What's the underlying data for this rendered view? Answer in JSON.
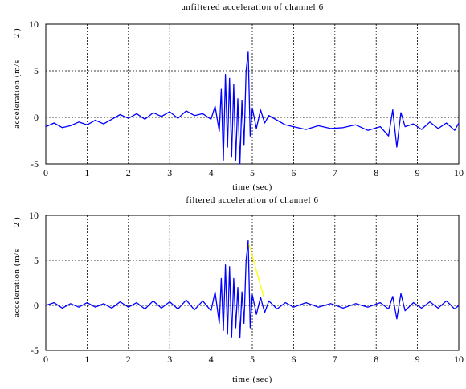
{
  "chart_data": [
    {
      "type": "line",
      "title": "unfiltered acceleration of channel 6",
      "xlabel": "time (sec)",
      "ylabel": "acceleration (m/s",
      "ylabel_exp": "2",
      "ylabel_close": ")",
      "xlim": [
        0,
        10
      ],
      "ylim": [
        -5,
        10
      ],
      "xticks": [
        0,
        1,
        2,
        3,
        4,
        5,
        6,
        7,
        8,
        9,
        10
      ],
      "yticks": [
        -5,
        0,
        5,
        10
      ],
      "grid": true,
      "series": [
        {
          "color": "#0000ff",
          "x": [
            0,
            0.2,
            0.4,
            0.6,
            0.8,
            1.0,
            1.2,
            1.4,
            1.6,
            1.8,
            2.0,
            2.2,
            2.4,
            2.6,
            2.8,
            3.0,
            3.2,
            3.4,
            3.6,
            3.8,
            4.0,
            4.1,
            4.2,
            4.25,
            4.3,
            4.35,
            4.4,
            4.45,
            4.5,
            4.55,
            4.6,
            4.65,
            4.7,
            4.75,
            4.8,
            4.85,
            4.9,
            4.95,
            5.0,
            5.1,
            5.2,
            5.3,
            5.4,
            5.6,
            5.8,
            6.0,
            6.3,
            6.6,
            6.9,
            7.2,
            7.5,
            7.8,
            8.1,
            8.3,
            8.4,
            8.5,
            8.6,
            8.7,
            8.9,
            9.1,
            9.3,
            9.5,
            9.7,
            9.9,
            10.0
          ],
          "y": [
            -1.0,
            -0.6,
            -1.1,
            -0.9,
            -0.5,
            -0.8,
            -0.3,
            -0.7,
            -0.2,
            0.3,
            -0.1,
            0.4,
            -0.2,
            0.5,
            0.1,
            0.6,
            -0.1,
            0.7,
            0.2,
            0.4,
            -0.2,
            1.2,
            -1.5,
            3.0,
            -4.6,
            4.6,
            -3.2,
            4.2,
            -4.2,
            3.5,
            -4.6,
            2.0,
            -5.0,
            1.8,
            -3.0,
            5.0,
            7.0,
            -2.0,
            1.0,
            -1.2,
            0.8,
            -0.6,
            0.2,
            -0.3,
            -0.8,
            -1.0,
            -1.3,
            -0.9,
            -1.2,
            -1.1,
            -0.8,
            -1.4,
            -1.0,
            -2.0,
            0.8,
            -3.2,
            0.5,
            -1.0,
            -0.7,
            -1.3,
            -0.5,
            -1.2,
            -0.6,
            -1.4,
            -0.6
          ]
        }
      ]
    },
    {
      "type": "line",
      "title": "filtered acceleration of channel 6",
      "xlabel": "time (sec)",
      "ylabel": "acceleration (m/s",
      "ylabel_exp": "2",
      "ylabel_close": ")",
      "xlim": [
        0,
        10
      ],
      "ylim": [
        -5,
        10
      ],
      "xticks": [
        0,
        1,
        2,
        3,
        4,
        5,
        6,
        7,
        8,
        9,
        10
      ],
      "yticks": [
        -5,
        0,
        5,
        10
      ],
      "grid": true,
      "series": [
        {
          "color": "#0000ff",
          "x": [
            0,
            0.2,
            0.4,
            0.6,
            0.8,
            1.0,
            1.2,
            1.4,
            1.6,
            1.8,
            2.0,
            2.2,
            2.4,
            2.6,
            2.8,
            3.0,
            3.2,
            3.4,
            3.6,
            3.8,
            4.0,
            4.1,
            4.2,
            4.25,
            4.3,
            4.35,
            4.4,
            4.45,
            4.5,
            4.55,
            4.6,
            4.65,
            4.7,
            4.75,
            4.8,
            4.85,
            4.9,
            4.95,
            5.0,
            5.1,
            5.2,
            5.3,
            5.4,
            5.6,
            5.8,
            6.0,
            6.3,
            6.6,
            6.9,
            7.2,
            7.5,
            7.8,
            8.1,
            8.3,
            8.4,
            8.5,
            8.6,
            8.7,
            8.9,
            9.1,
            9.3,
            9.5,
            9.7,
            9.9,
            10.0
          ],
          "y": [
            0.0,
            0.3,
            -0.3,
            0.2,
            -0.2,
            0.3,
            -0.2,
            0.2,
            -0.3,
            0.4,
            -0.2,
            0.3,
            -0.4,
            0.5,
            -0.3,
            0.4,
            -0.4,
            0.6,
            -0.5,
            0.5,
            -0.6,
            1.5,
            -2.0,
            3.0,
            -2.8,
            4.5,
            -3.2,
            4.3,
            -3.5,
            3.0,
            -2.5,
            2.0,
            -3.6,
            1.5,
            -2.0,
            5.0,
            7.2,
            -2.5,
            1.2,
            -1.0,
            0.9,
            -0.8,
            0.5,
            -0.4,
            0.3,
            -0.2,
            0.3,
            -0.2,
            0.2,
            -0.3,
            0.2,
            -0.2,
            0.3,
            -0.4,
            1.0,
            -1.5,
            1.3,
            -0.6,
            0.3,
            -0.3,
            0.4,
            -0.3,
            0.5,
            -0.4,
            0.0
          ]
        },
        {
          "color": "#ffff00",
          "x": [
            4.92,
            5.28
          ],
          "y": [
            6.8,
            0.9
          ]
        }
      ]
    }
  ]
}
